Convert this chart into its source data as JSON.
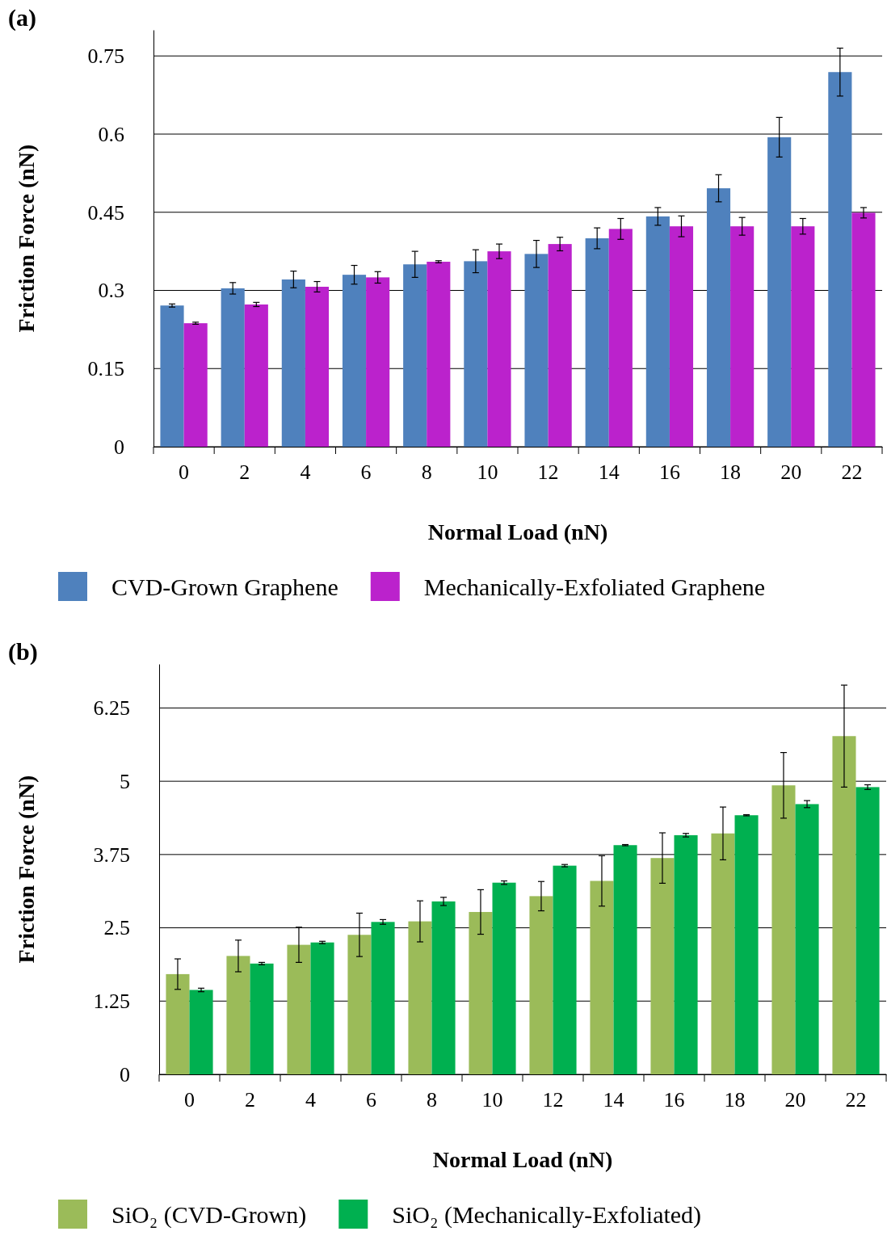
{
  "chart_data": [
    {
      "type": "bar",
      "title": "(a)",
      "xlabel": "Normal Load (nN)",
      "ylabel": "Friction Force (nN)",
      "categories": [
        "0",
        "2",
        "4",
        "6",
        "8",
        "10",
        "12",
        "14",
        "16",
        "18",
        "20",
        "22"
      ],
      "ylim": [
        0,
        0.8
      ],
      "yticks": [
        0,
        0.15,
        0.3,
        0.45,
        0.6,
        0.75
      ],
      "grid": "y",
      "legend": "bottom",
      "series": [
        {
          "name": "CVD-Grown Graphene",
          "color": "#4f81bd",
          "values": [
            0.271,
            0.304,
            0.321,
            0.33,
            0.35,
            0.356,
            0.37,
            0.4,
            0.442,
            0.496,
            0.594,
            0.719
          ],
          "errors": [
            0.003,
            0.011,
            0.016,
            0.018,
            0.025,
            0.022,
            0.026,
            0.02,
            0.017,
            0.026,
            0.038,
            0.046
          ]
        },
        {
          "name": "Mechanically-Exfoliated  Graphene",
          "color": "#bb22cc",
          "values": [
            0.237,
            0.273,
            0.307,
            0.325,
            0.355,
            0.375,
            0.389,
            0.418,
            0.423,
            0.423,
            0.423,
            0.449
          ],
          "errors": [
            0.002,
            0.004,
            0.01,
            0.011,
            0.002,
            0.014,
            0.013,
            0.02,
            0.02,
            0.017,
            0.015,
            0.01
          ]
        }
      ]
    },
    {
      "type": "bar",
      "title": "(b)",
      "xlabel": "Normal Load (nN)",
      "ylabel": "Friction Force (nN)",
      "categories": [
        "0",
        "2",
        "4",
        "6",
        "8",
        "10",
        "12",
        "14",
        "16",
        "18",
        "20",
        "22"
      ],
      "ylim": [
        0,
        7
      ],
      "yticks": [
        0,
        1.25,
        2.5,
        3.75,
        5,
        6.25
      ],
      "grid": "y",
      "legend": "bottom",
      "series": [
        {
          "name": "SiO₂ (CVD-Grown)",
          "color": "#9bbb59",
          "values": [
            1.71,
            2.02,
            2.21,
            2.38,
            2.61,
            2.77,
            3.04,
            3.3,
            3.69,
            4.11,
            4.93,
            5.77
          ],
          "errors": [
            0.26,
            0.27,
            0.3,
            0.37,
            0.35,
            0.38,
            0.25,
            0.43,
            0.43,
            0.45,
            0.56,
            0.87
          ]
        },
        {
          "name": "SiO₂ (Mechanically-Exfoliated)",
          "color": "#00b050",
          "values": [
            1.44,
            1.89,
            2.25,
            2.6,
            2.95,
            3.27,
            3.56,
            3.91,
            4.08,
            4.42,
            4.61,
            4.9
          ],
          "errors": [
            0.03,
            0.02,
            0.02,
            0.04,
            0.07,
            0.03,
            0.02,
            0.01,
            0.03,
            0.01,
            0.06,
            0.04
          ]
        }
      ]
    }
  ]
}
